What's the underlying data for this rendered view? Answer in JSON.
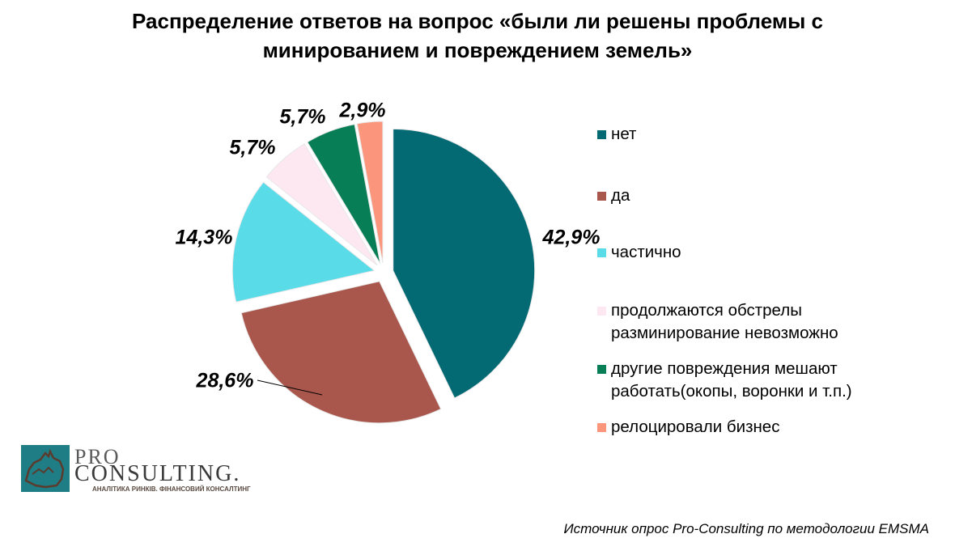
{
  "title_lines": [
    "Распределение ответов на вопрос «были ли решены проблемы с",
    "минированием и повреждением земель»"
  ],
  "chart_data": {
    "type": "pie",
    "categories": [
      "нет",
      "да",
      "частично",
      "продолжаются обстрелы разминирование невозможно",
      "другие повреждения мешают работать(окопы, воронки и т.п.)",
      "релоцировали бизнес"
    ],
    "values": [
      42.9,
      28.6,
      14.3,
      5.7,
      5.7,
      2.9
    ],
    "data_labels": [
      "42,9%",
      "28,6%",
      "14,3%",
      "5,7%",
      "5,7%",
      "2,9%"
    ],
    "colors": [
      "#036a73",
      "#a9574c",
      "#59dbe8",
      "#fde8f2",
      "#087e57",
      "#fb967d"
    ],
    "legend_position": "right"
  },
  "legend": [
    {
      "label": "нет",
      "color": "#036a73"
    },
    {
      "label": "да",
      "color": "#a9574c"
    },
    {
      "label": "частично",
      "color": "#59dbe8"
    },
    {
      "label": "продолжаются обстрелы\nразминирование невозможно",
      "color": "#fde8f2"
    },
    {
      "label": "другие повреждения мешают\nработать(окопы, воронки и т.п.)",
      "color": "#087e57"
    },
    {
      "label": "релоцировали бизнес",
      "color": "#fb967d"
    }
  ],
  "logo": {
    "pro": "PRO",
    "consulting": "CONSULTING.",
    "tagline": "АНАЛІТИКА РИНКІВ. ФІНАНСОВИЙ КОНСАЛТИНГ"
  },
  "source_note": "Источник опрос Pro-Consulting по методологии EMSMA"
}
